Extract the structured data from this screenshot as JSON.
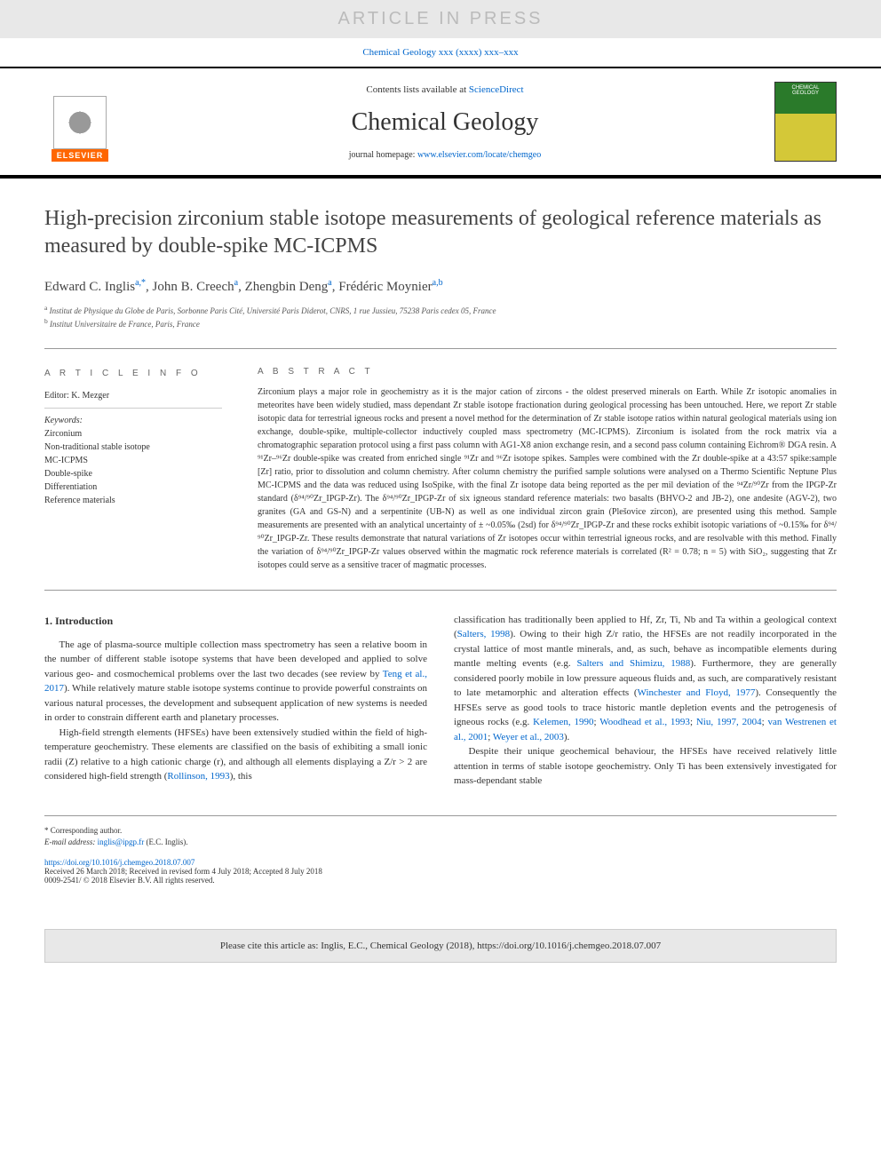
{
  "watermark": "ARTICLE IN PRESS",
  "journal_ref": {
    "text": "Chemical Geology xxx (xxxx) xxx–xxx",
    "link_text": "Chemical Geology xxx (xxxx) xxx–xxx"
  },
  "header": {
    "contents_prefix": "Contents lists available at ",
    "contents_link": "ScienceDirect",
    "journal_name": "Chemical Geology",
    "homepage_prefix": "journal homepage: ",
    "homepage_link": "www.elsevier.com/locate/chemgeo",
    "elsevier_label": "ELSEVIER",
    "cover_title": "CHEMICAL GEOLOGY"
  },
  "article": {
    "title": "High-precision zirconium stable isotope measurements of geological reference materials as measured by double-spike MC-ICPMS",
    "authors_html": "Edward C. Inglis<sup>a,*</sup>, John B. Creech<sup>a</sup>, Zhengbin Deng<sup>a</sup>, Frédéric Moynier<sup>a,b</sup>",
    "affiliations": [
      {
        "sup": "a",
        "text": "Institut de Physique du Globe de Paris, Sorbonne Paris Cité, Université Paris Diderot, CNRS, 1 rue Jussieu, 75238 Paris cedex 05, France"
      },
      {
        "sup": "b",
        "text": "Institut Universitaire de France, Paris, France"
      }
    ]
  },
  "article_info": {
    "heading": "A R T I C L E  I N F O",
    "editor_label": "Editor:",
    "editor": "K. Mezger",
    "keywords_label": "Keywords:",
    "keywords": [
      "Zirconium",
      "Non-traditional stable isotope",
      "MC-ICPMS",
      "Double-spike",
      "Differentiation",
      "Reference materials"
    ]
  },
  "abstract": {
    "heading": "A B S T R A C T",
    "text": "Zirconium plays a major role in geochemistry as it is the major cation of zircons - the oldest preserved minerals on Earth. While Zr isotopic anomalies in meteorites have been widely studied, mass dependant Zr stable isotope fractionation during geological processing has been untouched. Here, we report Zr stable isotopic data for terrestrial igneous rocks and present a novel method for the determination of Zr stable isotope ratios within natural geological materials using ion exchange, double-spike, multiple-collector inductively coupled mass spectrometry (MC-ICPMS). Zirconium is isolated from the rock matrix via a chromatographic separation protocol using a first pass column with AG1-X8 anion exchange resin, and a second pass column containing Eichrom® DGA resin. A ⁹¹Zr–⁹⁶Zr double-spike was created from enriched single ⁹¹Zr and ⁹⁶Zr isotope spikes. Samples were combined with the Zr double-spike at a 43:57 spike:sample [Zr] ratio, prior to dissolution and column chemistry. After column chemistry the purified sample solutions were analysed on a Thermo Scientific Neptune Plus MC-ICPMS and the data was reduced using IsoSpike, with the final Zr isotope data being reported as the per mil deviation of the ⁹⁴Zr/⁹⁰Zr from the IPGP-Zr standard (δ⁹⁴/⁹⁰Zr_IPGP-Zr). The δ⁹⁴/⁹⁰Zr_IPGP-Zr of six igneous standard reference materials: two basalts (BHVO-2 and JB-2), one andesite (AGV-2), two granites (GA and GS-N) and a serpentinite (UB-N) as well as one individual zircon grain (Plešovice zircon), are presented using this method. Sample measurements are presented with an analytical uncertainty of ± ~0.05‰ (2sd) for δ⁹⁴/⁹⁰Zr_IPGP-Zr and these rocks exhibit isotopic variations of ~0.15‰ for δ⁹⁴/⁹⁰Zr_IPGP-Zr. These results demonstrate that natural variations of Zr isotopes occur within terrestrial igneous rocks, and are resolvable with this method. Finally the variation of δ⁹⁴/⁹⁰Zr_IPGP-Zr values observed within the magmatic rock reference materials is correlated (R² = 0.78; n = 5) with SiO₂, suggesting that Zr isotopes could serve as a sensitive tracer of magmatic processes."
  },
  "sections": {
    "intro_heading": "1. Introduction",
    "col1_p1": "The age of plasma-source multiple collection mass spectrometry has seen a relative boom in the number of different stable isotope systems that have been developed and applied to solve various geo- and cosmochemical problems over the last two decades (see review by Teng et al., 2017). While relatively mature stable isotope systems continue to provide powerful constraints on various natural processes, the development and subsequent application of new systems is needed in order to constrain different earth and planetary processes.",
    "col1_p2": "High-field strength elements (HFSEs) have been extensively studied within the field of high-temperature geochemistry. These elements are classified on the basis of exhibiting a small ionic radii (Z) relative to a high cationic charge (r), and although all elements displaying a Z/r > 2 are considered high-field strength (Rollinson, 1993), this",
    "col2_p1": "classification has traditionally been applied to Hf, Zr, Ti, Nb and Ta within a geological context (Salters, 1998). Owing to their high Z/r ratio, the HFSEs are not readily incorporated in the crystal lattice of most mantle minerals, and, as such, behave as incompatible elements during mantle melting events (e.g. Salters and Shimizu, 1988). Furthermore, they are generally considered poorly mobile in low pressure aqueous fluids and, as such, are comparatively resistant to late metamorphic and alteration effects (Winchester and Floyd, 1977). Consequently the HFSEs serve as good tools to trace historic mantle depletion events and the petrogenesis of igneous rocks (e.g. Kelemen, 1990; Woodhead et al., 1993; Niu, 1997, 2004; van Westrenen et al., 2001; Weyer et al., 2003).",
    "col2_p2": "Despite their unique geochemical behaviour, the HFSEs have received relatively little attention in terms of stable isotope geochemistry. Only Ti has been extensively investigated for mass-dependant stable"
  },
  "footnotes": {
    "corresponding": "* Corresponding author.",
    "email_label": "E-mail address:",
    "email": "inglis@ipgp.fr",
    "email_attribution": "(E.C. Inglis)."
  },
  "doi": {
    "url": "https://doi.org/10.1016/j.chemgeo.2018.07.007",
    "received": "Received 26 March 2018; Received in revised form 4 July 2018; Accepted 8 July 2018",
    "copyright": "0009-2541/ © 2018 Elsevier B.V. All rights reserved."
  },
  "citation": "Please cite this article as: Inglis, E.C., Chemical Geology (2018), https://doi.org/10.1016/j.chemgeo.2018.07.007",
  "colors": {
    "link": "#0066cc",
    "elsevier_orange": "#ff6600",
    "watermark_bg": "#e8e8e8",
    "watermark_text": "#bbbbbb",
    "cover_green": "#2a7a2a",
    "cover_yellow": "#d4c838"
  }
}
